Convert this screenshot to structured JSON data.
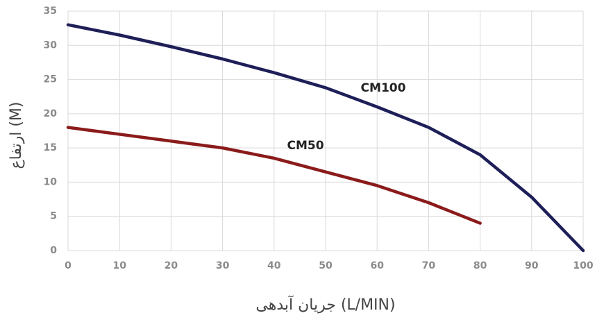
{
  "chart_data": {
    "type": "line",
    "x_label": "جریان آبدهی (L/MIN)",
    "y_label": "ارتفاع (M)",
    "x": [
      0,
      10,
      20,
      30,
      40,
      50,
      60,
      70,
      80,
      90,
      100
    ],
    "series": [
      {
        "name": "CM100",
        "color": "#1e1f58",
        "values": [
          33,
          31.5,
          29.8,
          28,
          26,
          23.8,
          21,
          18,
          14,
          7.8,
          0
        ]
      },
      {
        "name": "CM50",
        "color": "#8b1b1b",
        "values": [
          18,
          17,
          16,
          15,
          13.5,
          11.5,
          9.5,
          7,
          4,
          null,
          null
        ]
      }
    ],
    "xlim": [
      0,
      100
    ],
    "xticks": [
      0,
      10,
      20,
      30,
      40,
      50,
      60,
      70,
      80,
      90,
      100
    ],
    "ylim": [
      0,
      35
    ],
    "yticks": [
      0,
      5,
      10,
      15,
      20,
      25,
      30,
      35
    ],
    "grid": true
  }
}
